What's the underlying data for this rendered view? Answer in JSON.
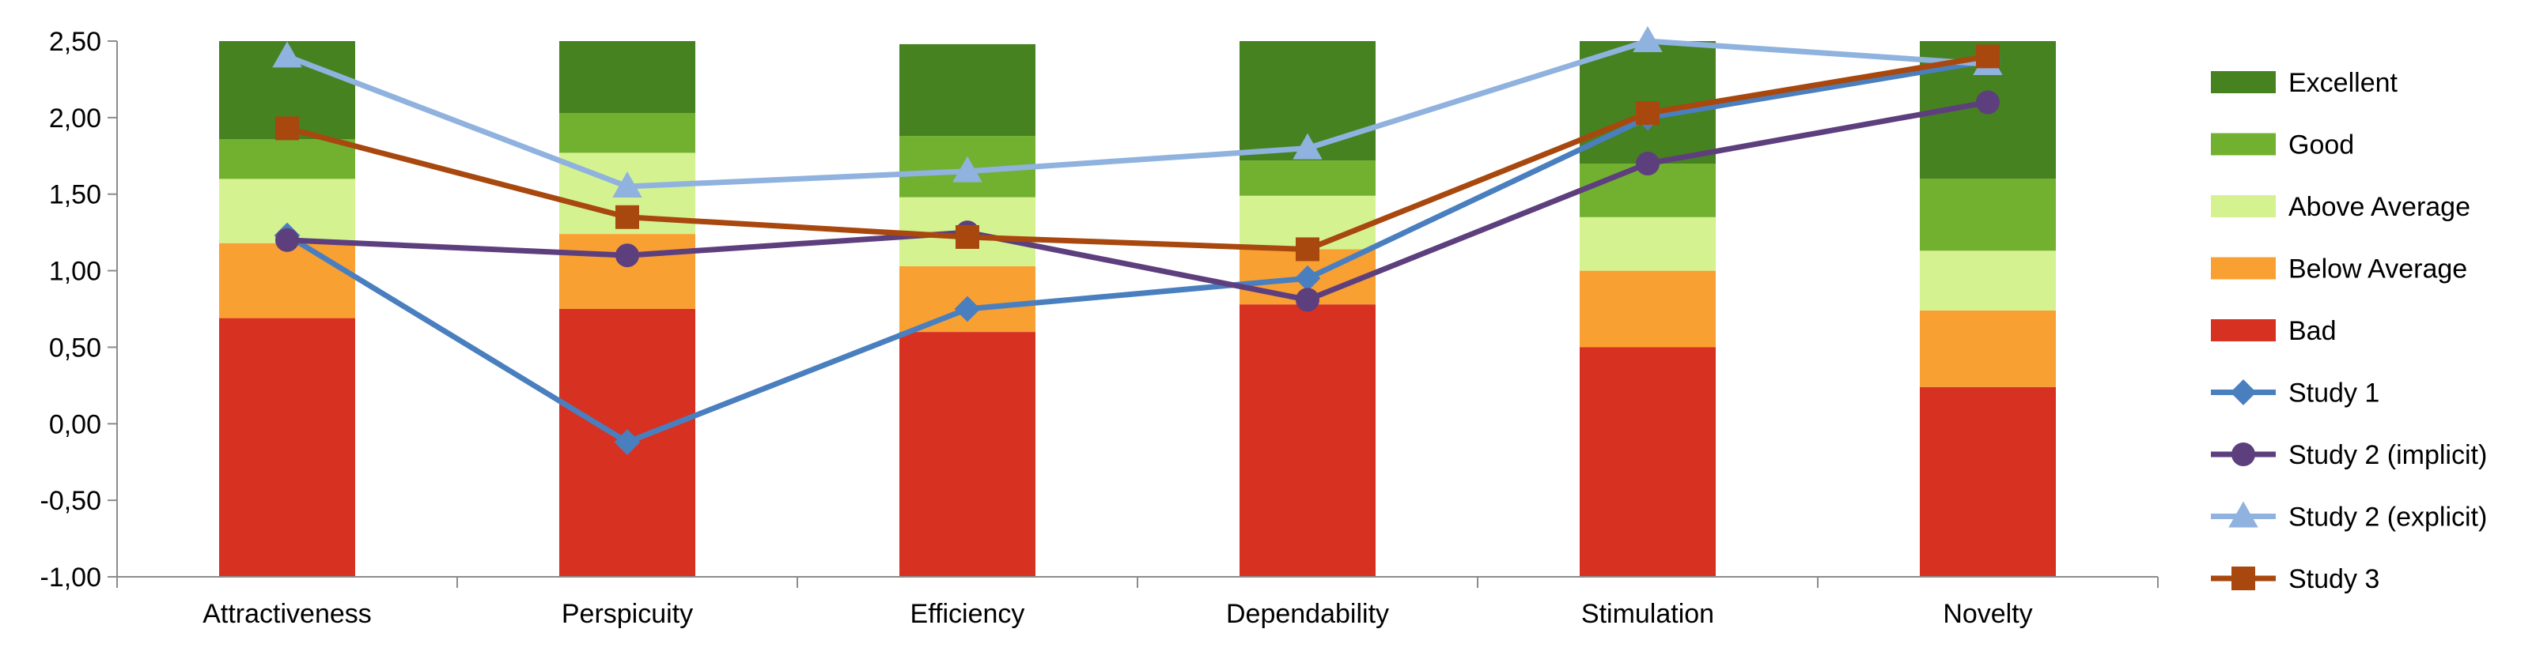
{
  "chart_data": {
    "type": "bar",
    "subtype": "stacked-bar-with-line-overlay",
    "title": "",
    "xlabel": "",
    "ylabel": "",
    "ylim": [
      -1.0,
      2.5
    ],
    "yticks": [
      "2,50",
      "2,00",
      "1,50",
      "1,00",
      "0,50",
      "0,00",
      "-0,50",
      "-1,00"
    ],
    "ytick_values": [
      2.5,
      2.0,
      1.5,
      1.0,
      0.5,
      0.0,
      -0.5,
      -1.0
    ],
    "categories": [
      "Attractiveness",
      "Perspicuity",
      "Efficiency",
      "Dependability",
      "Stimulation",
      "Novelty"
    ],
    "benchmark_base": -1.0,
    "benchmark_series": [
      {
        "name": "Bad",
        "color": "#d73121",
        "values": [
          1.69,
          1.75,
          1.6,
          1.78,
          1.5,
          1.24
        ]
      },
      {
        "name": "Below Average",
        "color": "#f9a032",
        "values": [
          0.49,
          0.49,
          0.43,
          0.36,
          0.5,
          0.5
        ]
      },
      {
        "name": "Above Average",
        "color": "#d5f291",
        "values": [
          0.42,
          0.53,
          0.45,
          0.35,
          0.35,
          0.39
        ]
      },
      {
        "name": "Good",
        "color": "#72b12f",
        "values": [
          0.26,
          0.26,
          0.4,
          0.23,
          0.35,
          0.47
        ]
      },
      {
        "name": "Excellent",
        "color": "#468220",
        "values": [
          0.64,
          0.47,
          0.6,
          0.78,
          0.8,
          0.9
        ]
      }
    ],
    "series": [
      {
        "name": "Study 1",
        "color": "#4a7fbf",
        "marker": "diamond",
        "values": [
          1.23,
          -0.12,
          0.75,
          0.95,
          2.0,
          2.37
        ]
      },
      {
        "name": "Study 2 (implicit)",
        "color": "#5e3f7e",
        "marker": "circle",
        "values": [
          1.2,
          1.1,
          1.25,
          0.81,
          1.7,
          2.1
        ]
      },
      {
        "name": "Study 2 (explicit)",
        "color": "#8fb2de",
        "marker": "triangle",
        "values": [
          2.4,
          1.55,
          1.65,
          1.8,
          2.5,
          2.35
        ]
      },
      {
        "name": "Study 3",
        "color": "#a8480e",
        "marker": "square",
        "values": [
          1.93,
          1.35,
          1.22,
          1.14,
          2.03,
          2.4
        ]
      }
    ],
    "legend": {
      "position": "right",
      "entries": [
        "Excellent",
        "Good",
        "Above Average",
        "Below Average",
        "Bad",
        "Study 1",
        "Study 2 (implicit)",
        "Study 2 (explicit)",
        "Study 3"
      ]
    },
    "grid": false
  }
}
